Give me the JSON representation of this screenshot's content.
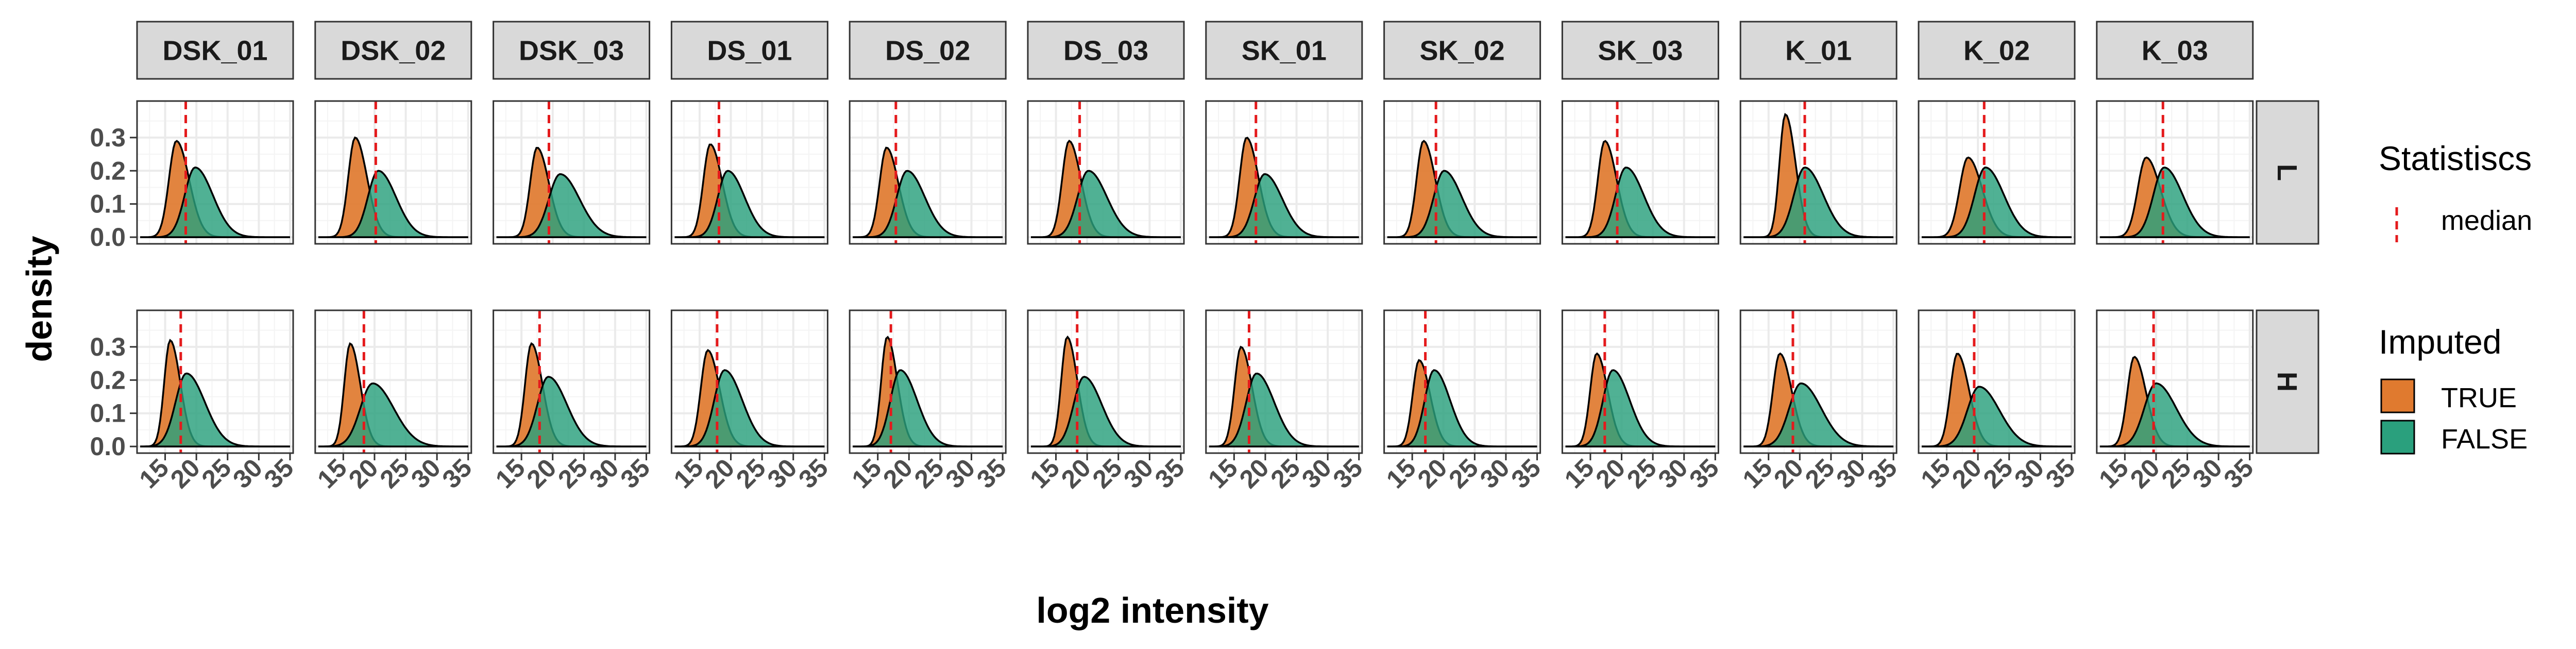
{
  "chart_data": {
    "type": "area",
    "subtype": "faceted-density",
    "xlabel": "log2 intensity",
    "ylabel": "density",
    "x_ticks": [
      15,
      20,
      25,
      30,
      35
    ],
    "x_tick_labels": [
      "15",
      "20",
      "25",
      "30",
      "35"
    ],
    "xlim": [
      10.5,
      35.5
    ],
    "y_ticks": [
      0,
      0.1,
      0.2,
      0.3
    ],
    "y_tick_labels": [
      "0.0",
      "0.1",
      "0.2",
      "0.3"
    ],
    "ylim": [
      -0.02,
      0.41
    ],
    "grid": true,
    "columns": [
      "DSK_01",
      "DSK_02",
      "DSK_03",
      "DS_01",
      "DS_02",
      "DS_03",
      "SK_01",
      "SK_02",
      "SK_03",
      "K_01",
      "K_02",
      "K_03"
    ],
    "rows": [
      "L",
      "H"
    ],
    "series_legend": {
      "title": "Imputed",
      "entries": [
        {
          "name": "TRUE",
          "color": "#e07a2f"
        },
        {
          "name": "FALSE",
          "color": "#2aa07d"
        }
      ]
    },
    "stat_legend": {
      "title": "Statistiscs",
      "entries": [
        {
          "name": "median",
          "color": "#e41a1c",
          "style": "dashed"
        }
      ]
    },
    "legend_position": "right",
    "curves_note_true": "approximate peak location (mu), spread (sigma) and peak density (peak) per panel",
    "panels": {
      "L": [
        {
          "true": {
            "mu": 16.8,
            "sigma": 1.5,
            "peak": 0.29
          },
          "false": {
            "mu": 19.8,
            "sigma": 2.1,
            "peak": 0.21
          },
          "median": 18.3
        },
        {
          "true": {
            "mu": 16.9,
            "sigma": 1.4,
            "peak": 0.3
          },
          "false": {
            "mu": 20.6,
            "sigma": 2.1,
            "peak": 0.2
          },
          "median": 20.2
        },
        {
          "true": {
            "mu": 17.5,
            "sigma": 1.4,
            "peak": 0.27
          },
          "false": {
            "mu": 21.2,
            "sigma": 2.3,
            "peak": 0.19
          },
          "median": 19.4
        },
        {
          "true": {
            "mu": 16.7,
            "sigma": 1.4,
            "peak": 0.28
          },
          "false": {
            "mu": 19.5,
            "sigma": 2.0,
            "peak": 0.2
          },
          "median": 18.1
        },
        {
          "true": {
            "mu": 16.4,
            "sigma": 1.4,
            "peak": 0.27
          },
          "false": {
            "mu": 19.7,
            "sigma": 2.1,
            "peak": 0.2
          },
          "median": 17.9
        },
        {
          "true": {
            "mu": 17.1,
            "sigma": 1.4,
            "peak": 0.29
          },
          "false": {
            "mu": 20.2,
            "sigma": 2.2,
            "peak": 0.2
          },
          "median": 18.8
        },
        {
          "true": {
            "mu": 17.0,
            "sigma": 1.4,
            "peak": 0.3
          },
          "false": {
            "mu": 19.9,
            "sigma": 2.1,
            "peak": 0.19
          },
          "median": 18.5
        },
        {
          "true": {
            "mu": 16.8,
            "sigma": 1.4,
            "peak": 0.29
          },
          "false": {
            "mu": 20.1,
            "sigma": 2.1,
            "peak": 0.2
          },
          "median": 18.8
        },
        {
          "true": {
            "mu": 17.3,
            "sigma": 1.4,
            "peak": 0.29
          },
          "false": {
            "mu": 20.7,
            "sigma": 2.1,
            "peak": 0.21
          },
          "median": 19.3
        },
        {
          "true": {
            "mu": 17.7,
            "sigma": 1.2,
            "peak": 0.37
          },
          "false": {
            "mu": 20.8,
            "sigma": 2.2,
            "peak": 0.21
          },
          "median": 20.8
        },
        {
          "true": {
            "mu": 18.4,
            "sigma": 1.7,
            "peak": 0.24
          },
          "false": {
            "mu": 21.2,
            "sigma": 2.2,
            "peak": 0.21
          },
          "median": 21.0
        },
        {
          "true": {
            "mu": 18.4,
            "sigma": 1.7,
            "peak": 0.24
          },
          "false": {
            "mu": 21.3,
            "sigma": 2.2,
            "peak": 0.21
          },
          "median": 21.1
        }
      ],
      "H": [
        {
          "true": {
            "mu": 15.8,
            "sigma": 1.2,
            "peak": 0.32
          },
          "false": {
            "mu": 18.4,
            "sigma": 2.2,
            "peak": 0.22
          },
          "median": 17.5
        },
        {
          "true": {
            "mu": 16.1,
            "sigma": 1.2,
            "peak": 0.31
          },
          "false": {
            "mu": 19.7,
            "sigma": 2.5,
            "peak": 0.19
          },
          "median": 18.3
        },
        {
          "true": {
            "mu": 16.6,
            "sigma": 1.3,
            "peak": 0.31
          },
          "false": {
            "mu": 19.3,
            "sigma": 2.2,
            "peak": 0.21
          },
          "median": 17.9
        },
        {
          "true": {
            "mu": 16.3,
            "sigma": 1.4,
            "peak": 0.29
          },
          "false": {
            "mu": 19.0,
            "sigma": 2.1,
            "peak": 0.23
          },
          "median": 17.8
        },
        {
          "true": {
            "mu": 16.5,
            "sigma": 1.2,
            "peak": 0.33
          },
          "false": {
            "mu": 18.6,
            "sigma": 2.0,
            "peak": 0.23
          },
          "median": 17.1
        },
        {
          "true": {
            "mu": 16.8,
            "sigma": 1.2,
            "peak": 0.33
          },
          "false": {
            "mu": 19.5,
            "sigma": 2.1,
            "peak": 0.21
          },
          "median": 18.4
        },
        {
          "true": {
            "mu": 16.1,
            "sigma": 1.3,
            "peak": 0.3
          },
          "false": {
            "mu": 18.6,
            "sigma": 2.1,
            "peak": 0.22
          },
          "median": 17.4
        },
        {
          "true": {
            "mu": 16.1,
            "sigma": 1.3,
            "peak": 0.26
          },
          "false": {
            "mu": 18.5,
            "sigma": 1.9,
            "peak": 0.23
          },
          "median": 17.1
        },
        {
          "true": {
            "mu": 16.0,
            "sigma": 1.3,
            "peak": 0.28
          },
          "false": {
            "mu": 18.6,
            "sigma": 2.0,
            "peak": 0.23
          },
          "median": 17.3
        },
        {
          "true": {
            "mu": 16.8,
            "sigma": 1.4,
            "peak": 0.28
          },
          "false": {
            "mu": 20.2,
            "sigma": 2.4,
            "peak": 0.19
          },
          "median": 18.9
        },
        {
          "true": {
            "mu": 16.7,
            "sigma": 1.4,
            "peak": 0.28
          },
          "false": {
            "mu": 20.2,
            "sigma": 2.4,
            "peak": 0.18
          },
          "median": 19.4
        },
        {
          "true": {
            "mu": 16.5,
            "sigma": 1.4,
            "peak": 0.27
          },
          "false": {
            "mu": 20.0,
            "sigma": 2.4,
            "peak": 0.19
          },
          "median": 19.6
        }
      ]
    }
  }
}
